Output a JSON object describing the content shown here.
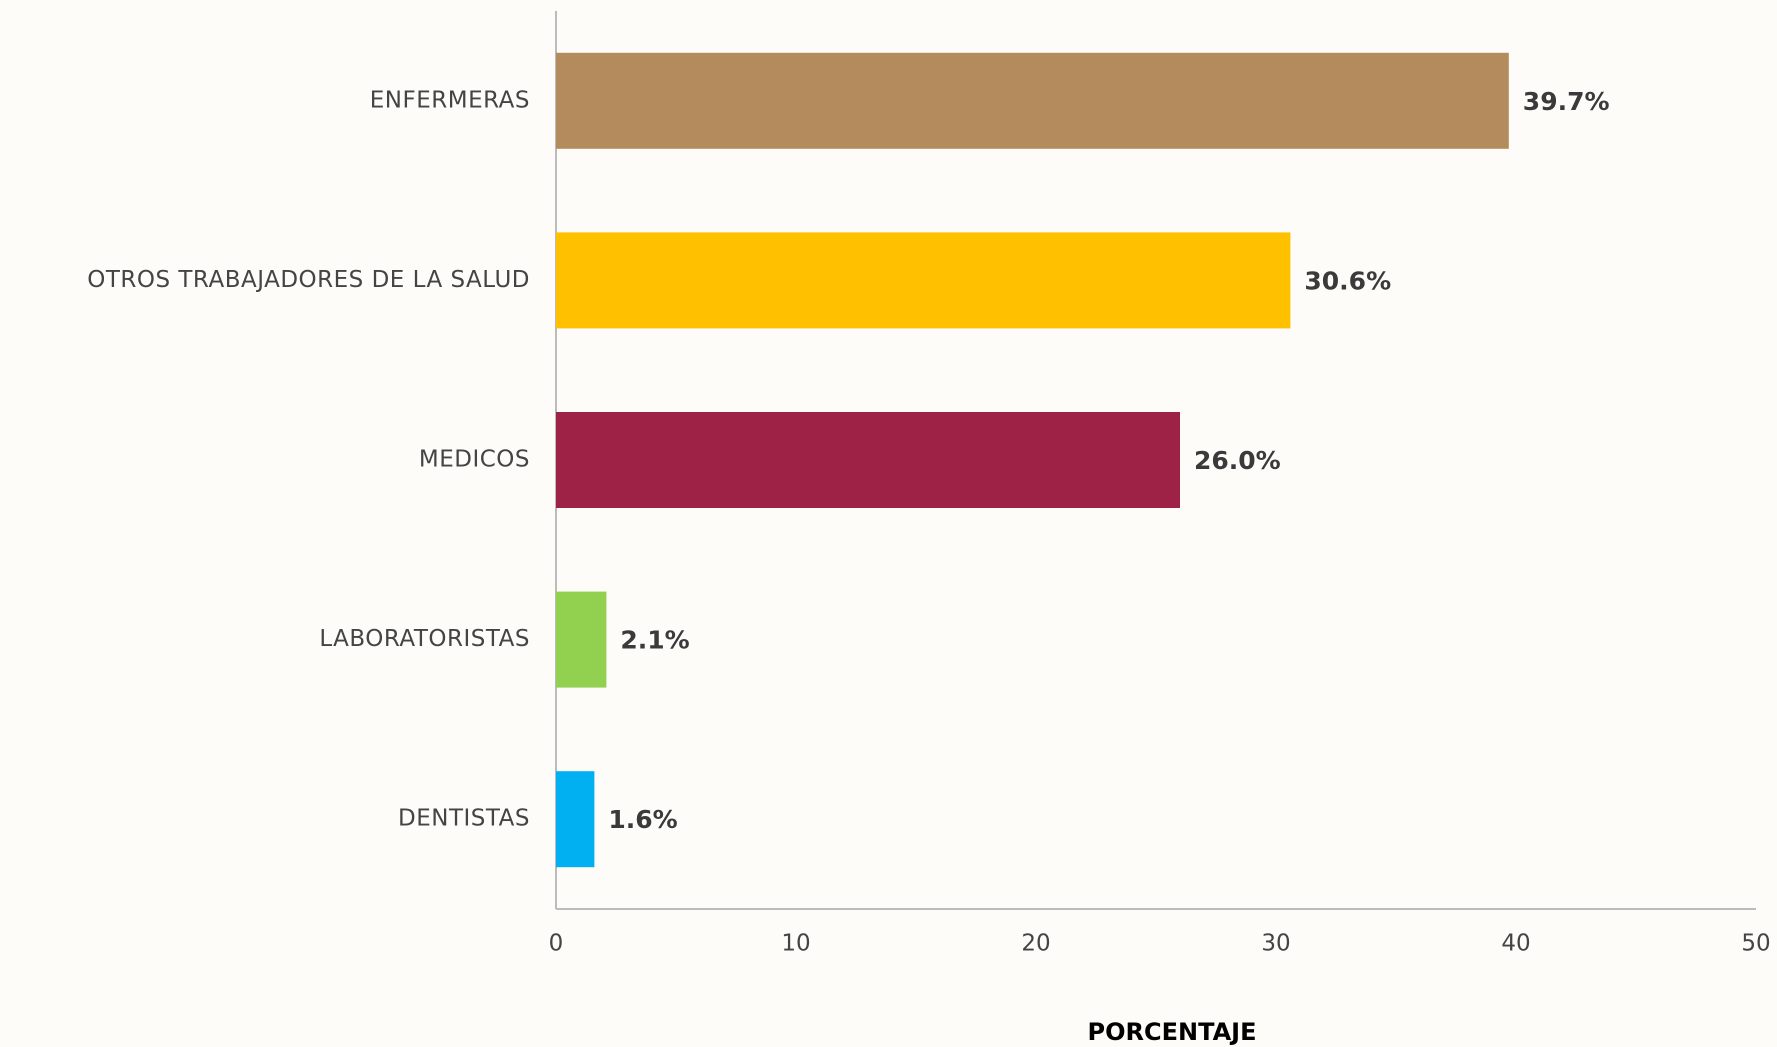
{
  "chart_data": {
    "type": "hbar",
    "x_label": "PORCENTAJE",
    "categories": [
      "ENFERMERAS",
      "OTROS TRABAJADORES DE LA SALUD",
      "MEDICOS",
      "LABORATORISTAS",
      "DENTISTAS"
    ],
    "values": [
      39.7,
      30.6,
      26.0,
      2.1,
      1.6
    ],
    "value_labels": [
      "39.7%",
      "30.6%",
      "26.0%",
      "2.1%",
      "1.6%"
    ],
    "colors": [
      "#b38b5c",
      "#ffc000",
      "#9e2246",
      "#92d050",
      "#00b0f0"
    ],
    "xlim": [
      0,
      50
    ],
    "xticks": [
      0,
      10,
      20,
      30,
      40,
      50
    ]
  }
}
